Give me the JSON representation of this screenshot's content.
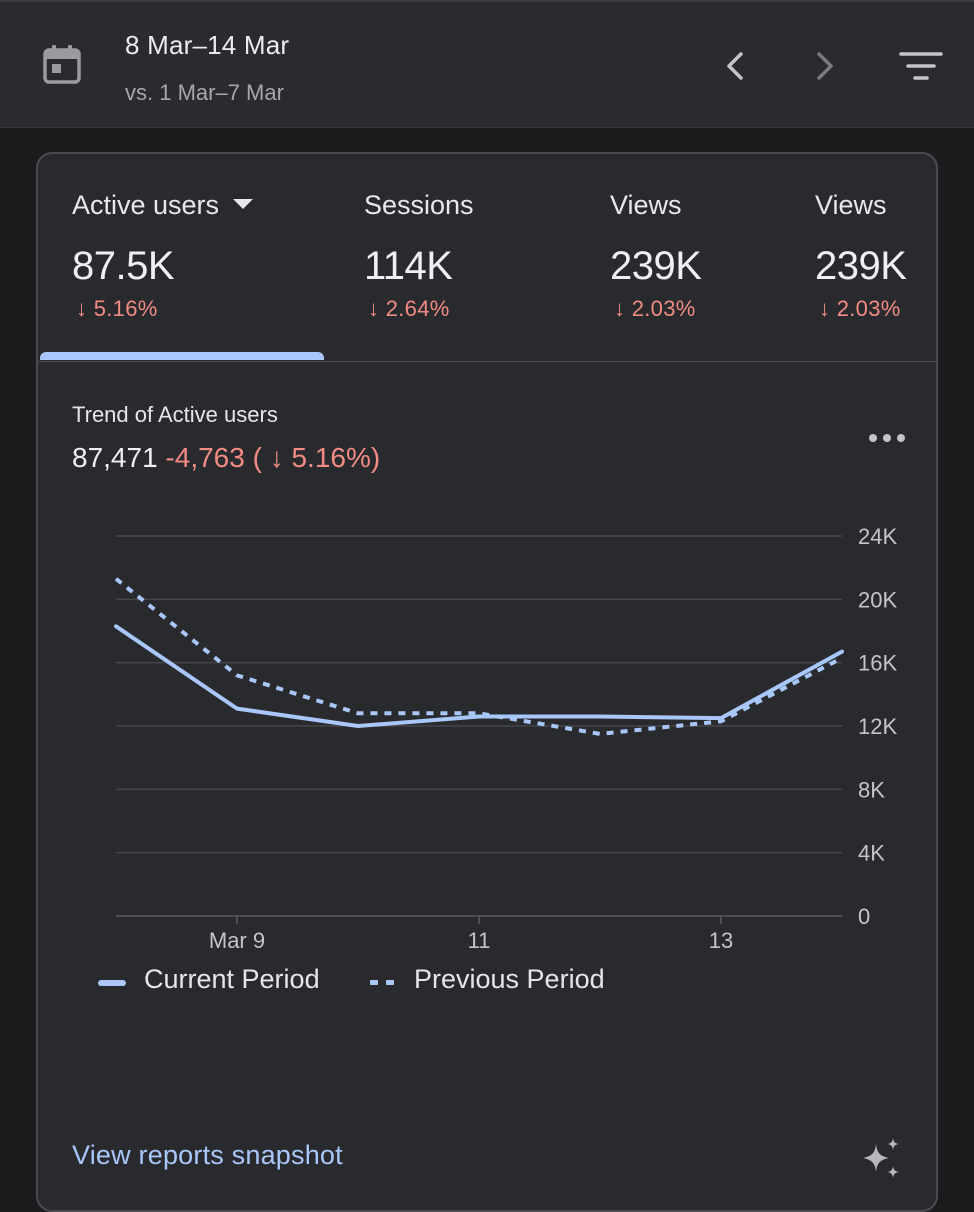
{
  "date_range": {
    "current": "8 Mar–14 Mar",
    "comparison": "vs. 1 Mar–7 Mar"
  },
  "metrics": [
    {
      "label": "Active users",
      "value": "87.5K",
      "change": "↓ 5.16%",
      "selected": true
    },
    {
      "label": "Sessions",
      "value": "114K",
      "change": "↓ 2.64%"
    },
    {
      "label": "Views",
      "value": "239K",
      "change": "↓ 2.03%"
    },
    {
      "label": "Views",
      "value": "239K",
      "change": "↓ 2.03%"
    }
  ],
  "trend": {
    "title": "Trend of Active users",
    "total": "87,471",
    "delta": "-4,763 ( ↓ 5.16%)"
  },
  "links": {
    "snapshot": "View reports snapshot"
  },
  "icons": {
    "calendar": "calendar-icon",
    "prev": "chevron-left-icon",
    "next": "chevron-right-icon",
    "filter": "filter-icon",
    "more": "more-horizontal-icon",
    "sparkle": "sparkle-icon"
  },
  "colors": {
    "accent": "#a8c7fa",
    "negative": "#f28b82",
    "background": "#1c1c1f",
    "card": "#292a2e"
  },
  "chart_data": {
    "type": "line",
    "x": [
      "Mar 8",
      "Mar 9",
      "Mar 10",
      "Mar 11",
      "Mar 12",
      "Mar 13",
      "Mar 14"
    ],
    "x_tick_labels": [
      {
        "x": "Mar 9",
        "label": "Mar 9"
      },
      {
        "x": "Mar 11",
        "label": "11"
      },
      {
        "x": "Mar 13",
        "label": "13"
      }
    ],
    "series": [
      {
        "name": "Current Period",
        "style": "solid",
        "values": [
          18300,
          13100,
          12000,
          12600,
          12600,
          12500,
          16700
        ]
      },
      {
        "name": "Previous Period",
        "style": "dotted",
        "values": [
          21300,
          15200,
          12800,
          12800,
          11500,
          12300,
          16300
        ]
      }
    ],
    "ylim": [
      0,
      24000
    ],
    "y_ticks": [
      0,
      4000,
      8000,
      12000,
      16000,
      20000,
      24000
    ],
    "y_tick_labels": [
      "0",
      "4K",
      "8K",
      "12K",
      "16K",
      "20K",
      "24K"
    ],
    "y_axis_side": "right",
    "grid": true,
    "legend_position": "bottom-left"
  }
}
